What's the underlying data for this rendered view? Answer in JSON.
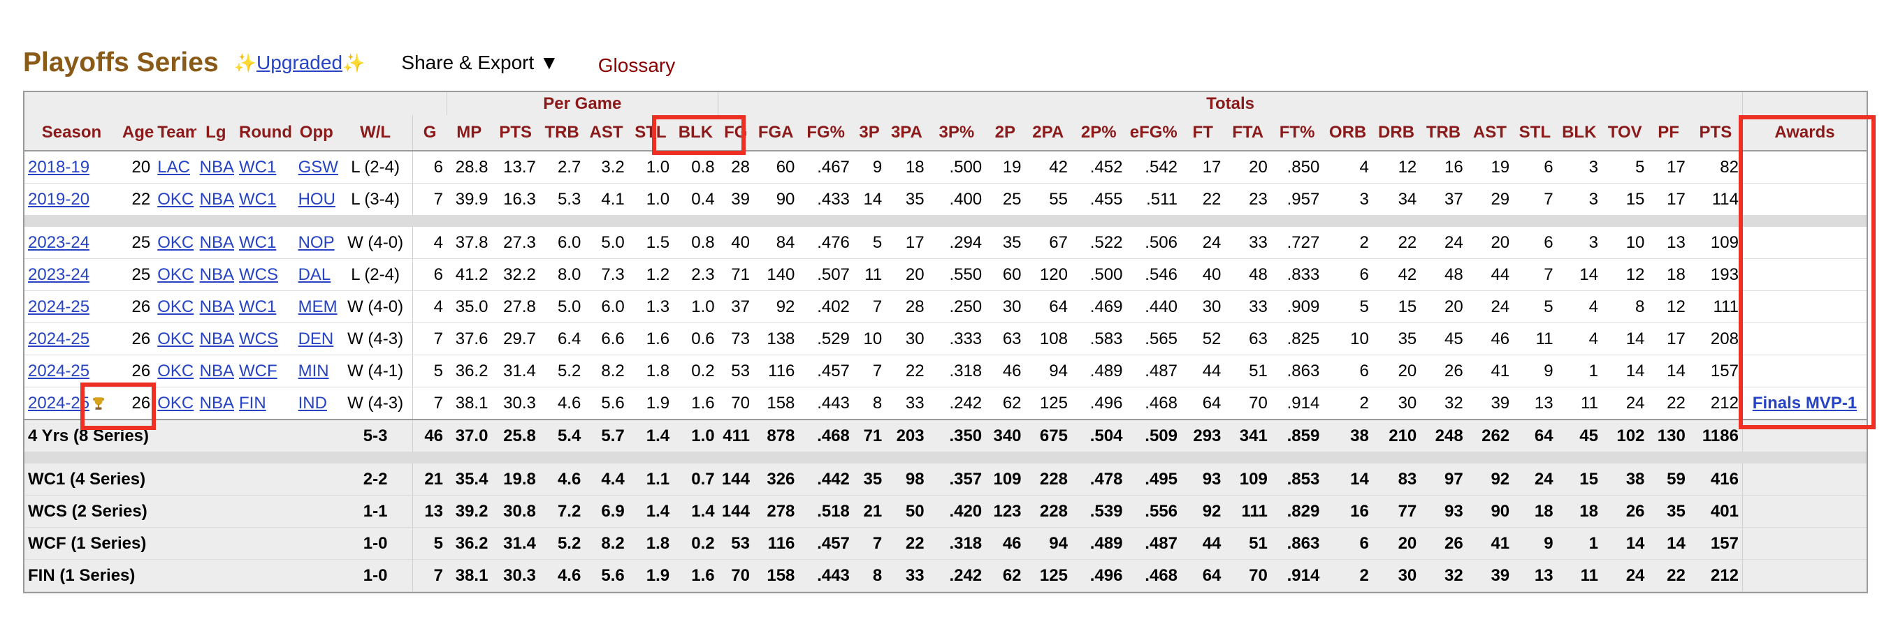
{
  "header": {
    "title": "Playoffs Series",
    "sparkle": "✨",
    "upgraded": "Upgraded",
    "share_export": "Share & Export ▼",
    "glossary": "Glossary"
  },
  "groups": {
    "per_game": "Per Game",
    "totals": "Totals"
  },
  "columns": [
    "Season",
    "Age",
    "Team",
    "Lg",
    "Round",
    "Opp",
    "W/L",
    "G",
    "MP",
    "PTS",
    "TRB",
    "AST",
    "STL",
    "BLK",
    "FG",
    "FGA",
    "FG%",
    "3P",
    "3PA",
    "3P%",
    "2P",
    "2PA",
    "2P%",
    "eFG%",
    "FT",
    "FTA",
    "FT%",
    "ORB",
    "DRB",
    "TRB",
    "AST",
    "STL",
    "BLK",
    "TOV",
    "PF",
    "PTS",
    "Awards"
  ],
  "rows": [
    {
      "season": "2018-19",
      "age": "20",
      "team": "LAC",
      "lg": "NBA",
      "round": "WC1",
      "opp": "GSW",
      "wl": "L (2-4)",
      "s": [
        "6",
        "28.8",
        "13.7",
        "2.7",
        "3.2",
        "1.0",
        "0.8",
        "28",
        "60",
        ".467",
        "9",
        "18",
        ".500",
        "19",
        "42",
        ".452",
        ".542",
        "17",
        "20",
        ".850",
        "4",
        "12",
        "16",
        "19",
        "6",
        "3",
        "5",
        "17",
        "82"
      ],
      "award": ""
    },
    {
      "season": "2019-20",
      "age": "22",
      "team": "OKC",
      "lg": "NBA",
      "round": "WC1",
      "opp": "HOU",
      "wl": "L (3-4)",
      "s": [
        "7",
        "39.9",
        "16.3",
        "5.3",
        "4.1",
        "1.0",
        "0.4",
        "39",
        "90",
        ".433",
        "14",
        "35",
        ".400",
        "25",
        "55",
        ".455",
        ".511",
        "22",
        "23",
        ".957",
        "3",
        "34",
        "37",
        "29",
        "7",
        "3",
        "15",
        "17",
        "114"
      ],
      "award": ""
    },
    {
      "gap": true
    },
    {
      "season": "2023-24",
      "age": "25",
      "team": "OKC",
      "lg": "NBA",
      "round": "WC1",
      "opp": "NOP",
      "wl": "W (4-0)",
      "s": [
        "4",
        "37.8",
        "27.3",
        "6.0",
        "5.0",
        "1.5",
        "0.8",
        "40",
        "84",
        ".476",
        "5",
        "17",
        ".294",
        "35",
        "67",
        ".522",
        ".506",
        "24",
        "33",
        ".727",
        "2",
        "22",
        "24",
        "20",
        "6",
        "3",
        "10",
        "13",
        "109"
      ],
      "award": ""
    },
    {
      "season": "2023-24",
      "age": "25",
      "team": "OKC",
      "lg": "NBA",
      "round": "WCS",
      "opp": "DAL",
      "wl": "L (2-4)",
      "s": [
        "6",
        "41.2",
        "32.2",
        "8.0",
        "7.3",
        "1.2",
        "2.3",
        "71",
        "140",
        ".507",
        "11",
        "20",
        ".550",
        "60",
        "120",
        ".500",
        ".546",
        "40",
        "48",
        ".833",
        "6",
        "42",
        "48",
        "44",
        "7",
        "14",
        "12",
        "18",
        "193"
      ],
      "award": ""
    },
    {
      "season": "2024-25",
      "age": "26",
      "team": "OKC",
      "lg": "NBA",
      "round": "WC1",
      "opp": "MEM",
      "wl": "W (4-0)",
      "s": [
        "4",
        "35.0",
        "27.8",
        "5.0",
        "6.0",
        "1.3",
        "1.0",
        "37",
        "92",
        ".402",
        "7",
        "28",
        ".250",
        "30",
        "64",
        ".469",
        ".440",
        "30",
        "33",
        ".909",
        "5",
        "15",
        "20",
        "24",
        "5",
        "4",
        "8",
        "12",
        "111"
      ],
      "award": ""
    },
    {
      "season": "2024-25",
      "age": "26",
      "team": "OKC",
      "lg": "NBA",
      "round": "WCS",
      "opp": "DEN",
      "wl": "W (4-3)",
      "s": [
        "7",
        "37.6",
        "29.7",
        "6.4",
        "6.6",
        "1.6",
        "0.6",
        "73",
        "138",
        ".529",
        "10",
        "30",
        ".333",
        "63",
        "108",
        ".583",
        ".565",
        "52",
        "63",
        ".825",
        "10",
        "35",
        "45",
        "46",
        "11",
        "4",
        "14",
        "17",
        "208"
      ],
      "award": ""
    },
    {
      "season": "2024-25",
      "age": "26",
      "team": "OKC",
      "lg": "NBA",
      "round": "WCF",
      "opp": "MIN",
      "wl": "W (4-1)",
      "s": [
        "5",
        "36.2",
        "31.4",
        "5.2",
        "8.2",
        "1.8",
        "0.2",
        "53",
        "116",
        ".457",
        "7",
        "22",
        ".318",
        "46",
        "94",
        ".489",
        ".487",
        "44",
        "51",
        ".863",
        "6",
        "20",
        "26",
        "41",
        "9",
        "1",
        "14",
        "14",
        "157"
      ],
      "award": ""
    },
    {
      "season": "2024-25",
      "age": "26",
      "team": "OKC",
      "lg": "NBA",
      "round": "FIN",
      "opp": "IND",
      "wl": "W (4-3)",
      "s": [
        "7",
        "38.1",
        "30.3",
        "4.6",
        "5.6",
        "1.9",
        "1.6",
        "70",
        "158",
        ".443",
        "8",
        "33",
        ".242",
        "62",
        "125",
        ".496",
        ".468",
        "64",
        "70",
        ".914",
        "2",
        "30",
        "32",
        "39",
        "13",
        "11",
        "24",
        "22",
        "212"
      ],
      "award": "Finals MVP-1",
      "trophy": true
    }
  ],
  "summary": [
    {
      "label": "4 Yrs (8 Series)",
      "wl": "5-3",
      "s": [
        "46",
        "37.0",
        "25.8",
        "5.4",
        "5.7",
        "1.4",
        "1.0",
        "411",
        "878",
        ".468",
        "71",
        "203",
        ".350",
        "340",
        "675",
        ".504",
        ".509",
        "293",
        "341",
        ".859",
        "38",
        "210",
        "248",
        "262",
        "64",
        "45",
        "102",
        "130",
        "1186"
      ]
    },
    {
      "gap": true
    },
    {
      "label": "WC1 (4 Series)",
      "wl": "2-2",
      "s": [
        "21",
        "35.4",
        "19.8",
        "4.6",
        "4.4",
        "1.1",
        "0.7",
        "144",
        "326",
        ".442",
        "35",
        "98",
        ".357",
        "109",
        "228",
        ".478",
        ".495",
        "93",
        "109",
        ".853",
        "14",
        "83",
        "97",
        "92",
        "24",
        "15",
        "38",
        "59",
        "416"
      ]
    },
    {
      "label": "WCS (2 Series)",
      "wl": "1-1",
      "s": [
        "13",
        "39.2",
        "30.8",
        "7.2",
        "6.9",
        "1.4",
        "1.4",
        "144",
        "278",
        ".518",
        "21",
        "50",
        ".420",
        "123",
        "228",
        ".539",
        ".556",
        "92",
        "111",
        ".829",
        "16",
        "77",
        "93",
        "90",
        "18",
        "18",
        "26",
        "35",
        "401"
      ]
    },
    {
      "label": "WCF (1 Series)",
      "wl": "1-0",
      "s": [
        "5",
        "36.2",
        "31.4",
        "5.2",
        "8.2",
        "1.8",
        "0.2",
        "53",
        "116",
        ".457",
        "7",
        "22",
        ".318",
        "46",
        "94",
        ".489",
        ".487",
        "44",
        "51",
        ".863",
        "6",
        "20",
        "26",
        "41",
        "9",
        "1",
        "14",
        "14",
        "157"
      ]
    },
    {
      "label": "FIN (1 Series)",
      "wl": "1-0",
      "s": [
        "7",
        "38.1",
        "30.3",
        "4.6",
        "5.6",
        "1.9",
        "1.6",
        "70",
        "158",
        ".443",
        "8",
        "33",
        ".242",
        "62",
        "125",
        ".496",
        ".468",
        "64",
        "70",
        ".914",
        "2",
        "30",
        "32",
        "39",
        "13",
        "11",
        "24",
        "22",
        "212"
      ]
    }
  ],
  "highlight_color": "#ee2f24"
}
